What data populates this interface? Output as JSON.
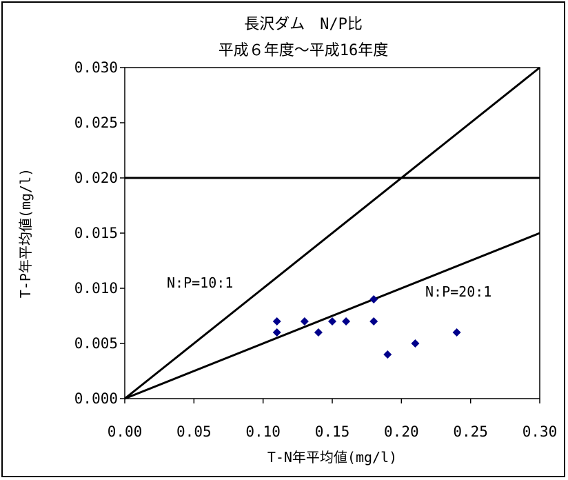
{
  "chart_data": {
    "type": "scatter",
    "title": "長沢ダム　N/P比",
    "subtitle": "平成６年度～平成16年度",
    "xlabel": "T-N年平均値(mg/l)",
    "ylabel": "T-P年平均値(mg/l)",
    "xlim": [
      0,
      0.3
    ],
    "ylim": [
      0,
      0.03
    ],
    "x_ticks": [
      "0.00",
      "0.05",
      "0.10",
      "0.15",
      "0.20",
      "0.25",
      "0.30"
    ],
    "y_ticks": [
      "0.000",
      "0.005",
      "0.010",
      "0.015",
      "0.020",
      "0.025",
      "0.030"
    ],
    "grid": false,
    "marker_color": "#00008b",
    "points": [
      {
        "x": 0.11,
        "y": 0.007
      },
      {
        "x": 0.11,
        "y": 0.006
      },
      {
        "x": 0.13,
        "y": 0.007
      },
      {
        "x": 0.14,
        "y": 0.006
      },
      {
        "x": 0.15,
        "y": 0.007
      },
      {
        "x": 0.16,
        "y": 0.007
      },
      {
        "x": 0.18,
        "y": 0.009
      },
      {
        "x": 0.18,
        "y": 0.007
      },
      {
        "x": 0.19,
        "y": 0.004
      },
      {
        "x": 0.21,
        "y": 0.005
      },
      {
        "x": 0.24,
        "y": 0.006
      }
    ],
    "reference_lines": [
      {
        "label": "N:P=10:1",
        "x": [
          0,
          0.3
        ],
        "y": [
          0,
          0.03
        ]
      },
      {
        "label": "N:P=20:1",
        "x": [
          0,
          0.3
        ],
        "y": [
          0,
          0.015
        ]
      },
      {
        "label": "",
        "x": [
          0,
          0.3
        ],
        "y": [
          0.02,
          0.02
        ]
      }
    ]
  }
}
